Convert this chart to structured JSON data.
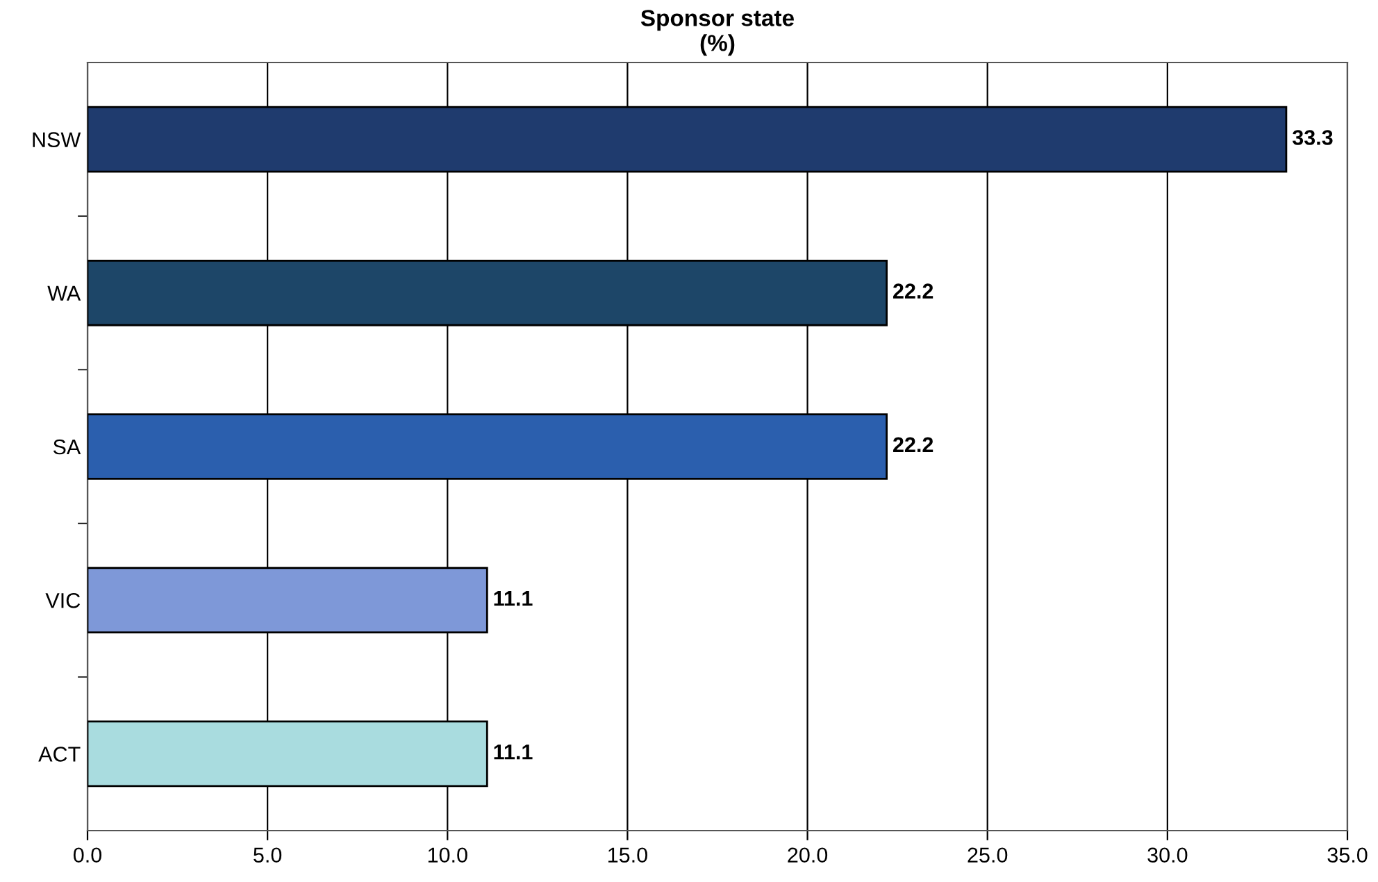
{
  "chart_data": {
    "type": "bar",
    "orientation": "horizontal",
    "title": "Sponsor state\n(%)",
    "categories": [
      "NSW",
      "WA",
      "SA",
      "VIC",
      "ACT"
    ],
    "values": [
      33.3,
      22.2,
      22.2,
      11.1,
      11.1
    ],
    "colors": [
      "#1f3b6e",
      "#1d4668",
      "#2b5fae",
      "#7e98d8",
      "#a9dcdf"
    ],
    "xlim": [
      0,
      35
    ],
    "xticks": [
      {
        "value": 0,
        "label": "0.0"
      },
      {
        "value": 5,
        "label": "5.0"
      },
      {
        "value": 10,
        "label": "10.0"
      },
      {
        "value": 15,
        "label": "15.0"
      },
      {
        "value": 20,
        "label": "20.0"
      },
      {
        "value": 25,
        "label": "25.0"
      },
      {
        "value": 30,
        "label": "30.0"
      },
      {
        "value": 35,
        "label": "35.0"
      }
    ],
    "grid": "x",
    "data_labels": true
  }
}
